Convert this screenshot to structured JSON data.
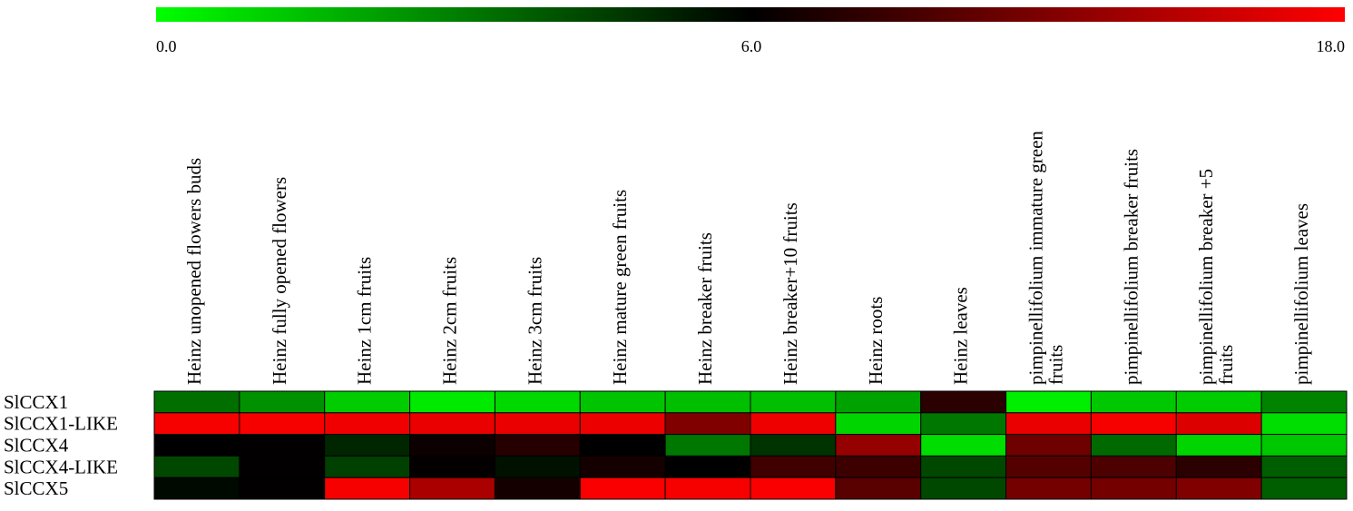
{
  "chart_data": {
    "type": "heatmap",
    "color_scale": {
      "min": 0.0,
      "mid": 6.0,
      "max": 18.0,
      "tick_labels": [
        "0.0",
        "6.0",
        "18.0"
      ],
      "colors": {
        "low": "#00ff00",
        "mid": "#000000",
        "high": "#ff0000"
      }
    },
    "columns": [
      [
        "Heinz unopened flowers buds"
      ],
      [
        "Heinz fully opened flowers"
      ],
      [
        "Heinz 1cm fruits"
      ],
      [
        "Heinz 2cm fruits"
      ],
      [
        "Heinz 3cm fruits"
      ],
      [
        "Heinz mature green fruits"
      ],
      [
        "Heinz breaker fruits"
      ],
      [
        "Heinz breaker+10 fruits"
      ],
      [
        "Heinz roots"
      ],
      [
        "Heinz leaves"
      ],
      [
        "pimpinellifolium immature green",
        "fruits"
      ],
      [
        "pimpinellifolium breaker fruits"
      ],
      [
        "pimpinellifolium breaker +5",
        "fruits"
      ],
      [
        "pimpinellifolium leaves"
      ]
    ],
    "rows": [
      "SlCCX1",
      "SlCCX1-LIKE",
      "SlCCX4",
      "SlCCX4-LIKE",
      "SlCCX5"
    ],
    "values": [
      [
        3.4,
        2.6,
        1.2,
        0.5,
        0.9,
        1.4,
        1.5,
        1.5,
        2.2,
        8.0,
        0.4,
        1.3,
        1.2,
        2.9
      ],
      [
        17.6,
        17.6,
        17.3,
        17.0,
        17.0,
        17.1,
        12.0,
        17.2,
        1.0,
        3.2,
        17.0,
        17.6,
        16.4,
        0.8
      ],
      [
        6.0,
        6.1,
        5.1,
        6.6,
        7.8,
        6.0,
        3.2,
        4.8,
        13.0,
        0.8,
        11.2,
        3.5,
        1.0,
        1.3
      ],
      [
        4.3,
        6.1,
        4.5,
        6.2,
        5.6,
        7.0,
        6.0,
        9.0,
        8.8,
        4.3,
        10.0,
        9.6,
        8.0,
        3.8
      ],
      [
        5.8,
        6.1,
        17.6,
        14.0,
        7.0,
        17.8,
        17.6,
        17.8,
        10.2,
        4.3,
        11.5,
        11.5,
        12.0,
        3.8
      ]
    ]
  }
}
